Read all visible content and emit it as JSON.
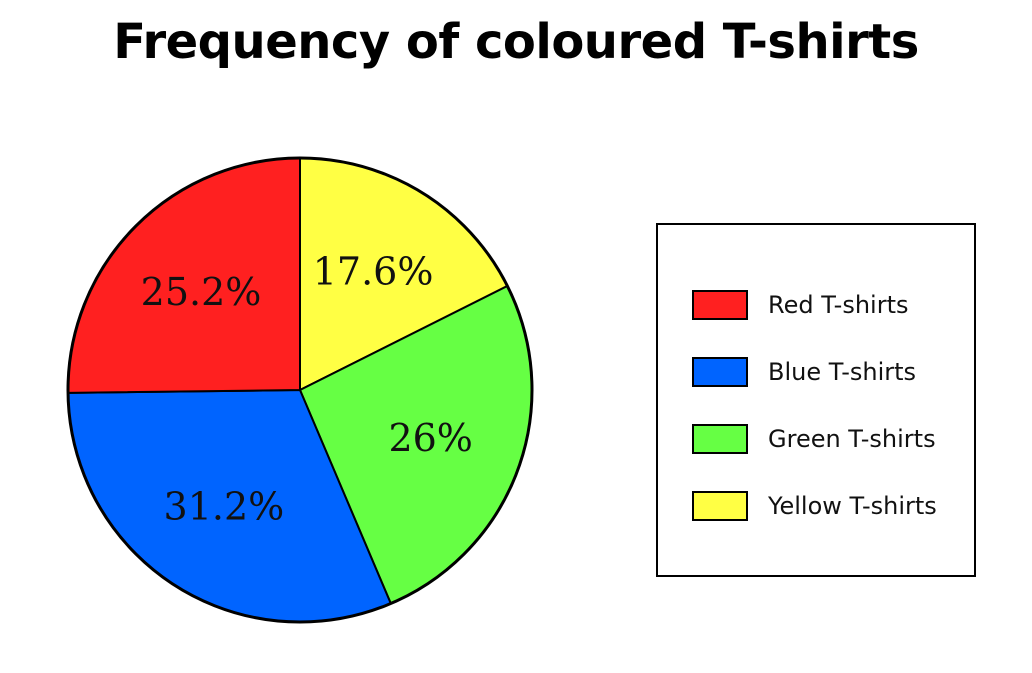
{
  "chart_data": {
    "type": "pie",
    "title": "Frequency of coloured T-shirts",
    "categories": [
      "Red T-shirts",
      "Blue T-shirts",
      "Green T-shirts",
      "Yellow T-shirts"
    ],
    "values": [
      25.2,
      31.2,
      26,
      17.6
    ],
    "value_labels": [
      "25.2%",
      "31.2%",
      "26%",
      "17.6%"
    ],
    "colors": [
      "#ff2020",
      "#0064ff",
      "#66ff44",
      "#ffff44"
    ],
    "legend_position": "right"
  }
}
